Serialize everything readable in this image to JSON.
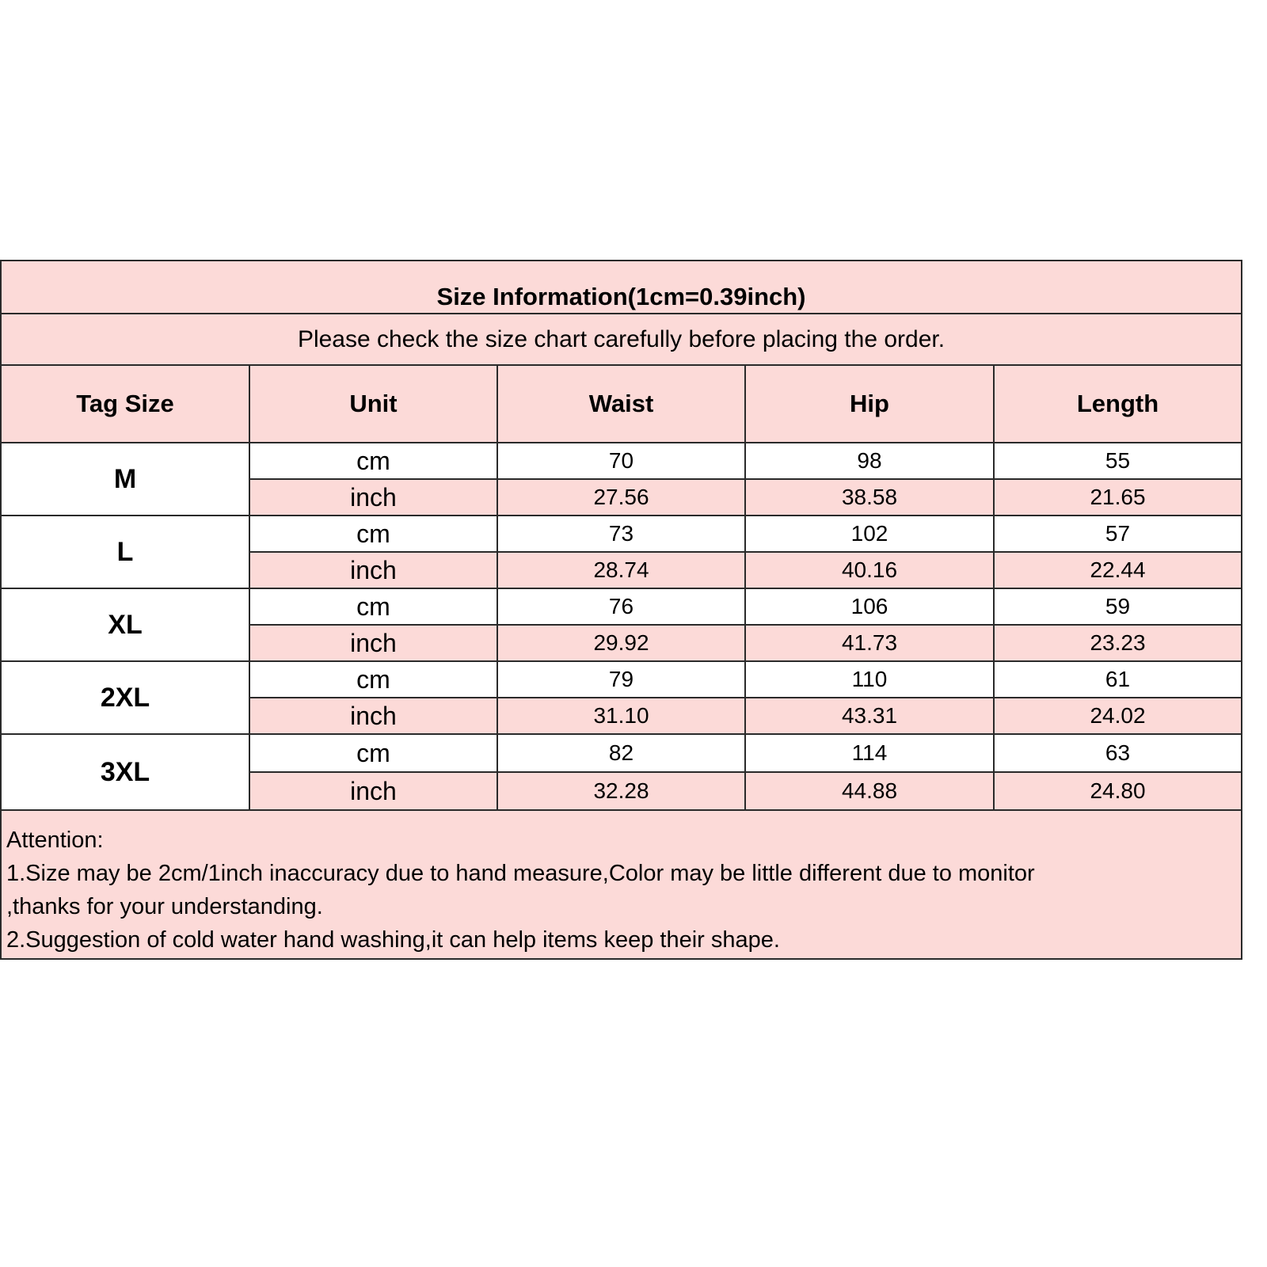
{
  "title": "Size Information(1cm=0.39inch)",
  "subtitle": "Please check the size chart carefully before placing the order.",
  "headers": [
    "Tag Size",
    "Unit",
    "Waist",
    "Hip",
    "Length"
  ],
  "rows": [
    {
      "size": "M",
      "cm": [
        "70",
        "98",
        "55"
      ],
      "inch": [
        "27.56",
        "38.58",
        "21.65"
      ]
    },
    {
      "size": "L",
      "cm": [
        "73",
        "102",
        "57"
      ],
      "inch": [
        "28.74",
        "40.16",
        "22.44"
      ]
    },
    {
      "size": "XL",
      "cm": [
        "76",
        "106",
        "59"
      ],
      "inch": [
        "29.92",
        "41.73",
        "23.23"
      ]
    },
    {
      "size": "2XL",
      "cm": [
        "79",
        "110",
        "61"
      ],
      "inch": [
        "31.10",
        "43.31",
        "24.02"
      ]
    },
    {
      "size": "3XL",
      "cm": [
        "82",
        "114",
        "63"
      ],
      "inch": [
        "32.28",
        "44.88",
        "24.80"
      ]
    }
  ],
  "units": {
    "cm": "cm",
    "inch": "inch"
  },
  "attention": [
    "Attention:",
    "1.Size may be 2cm/1inch inaccuracy due to hand measure,Color may be little different due to monitor",
    ",thanks for your understanding.",
    "2.Suggestion of cold water hand washing,it can help items keep their shape."
  ],
  "colors": {
    "pink": "#fcdad8",
    "border": "#2a2a2a"
  }
}
